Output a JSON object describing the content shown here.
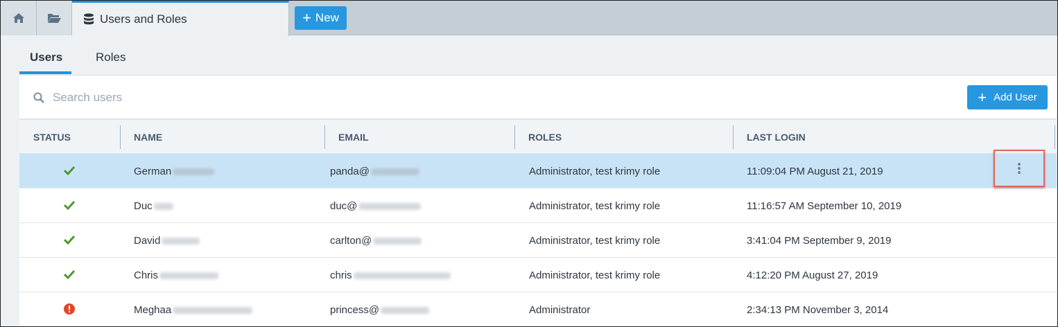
{
  "tabs": {
    "active_label": "Users and Roles",
    "new_label": "New"
  },
  "subtabs": [
    {
      "label": "Users",
      "active": true
    },
    {
      "label": "Roles",
      "active": false
    }
  ],
  "search": {
    "placeholder": "Search users"
  },
  "add_user_label": "Add User",
  "columns": [
    "STATUS",
    "NAME",
    "EMAIL",
    "ROLES",
    "LAST LOGIN"
  ],
  "colors": {
    "accent": "#2797e0",
    "ok": "#4a9a2c",
    "error": "#e2462a",
    "selected_row": "#c9e3f6"
  },
  "rows": [
    {
      "status": "ok",
      "name": "German",
      "email": "panda@",
      "roles": "Administrator, test krimy role",
      "last_login": "11:09:04 PM August 21, 2019",
      "selected": true
    },
    {
      "status": "ok",
      "name": "Duc",
      "email": "duc@",
      "roles": "Administrator, test krimy role",
      "last_login": "11:16:57 AM September 10, 2019"
    },
    {
      "status": "ok",
      "name": "David",
      "email": "carlton@",
      "roles": "Administrator, test krimy role",
      "last_login": "3:41:04 PM September 9, 2019"
    },
    {
      "status": "ok",
      "name": "Chris",
      "email": "chris",
      "roles": "Administrator, test krimy role",
      "last_login": "4:12:20 PM August 27, 2019"
    },
    {
      "status": "error",
      "name": "Meghaa",
      "email": "princess@",
      "roles": "Administrator",
      "last_login": "2:34:13 PM November 3, 2014"
    }
  ]
}
